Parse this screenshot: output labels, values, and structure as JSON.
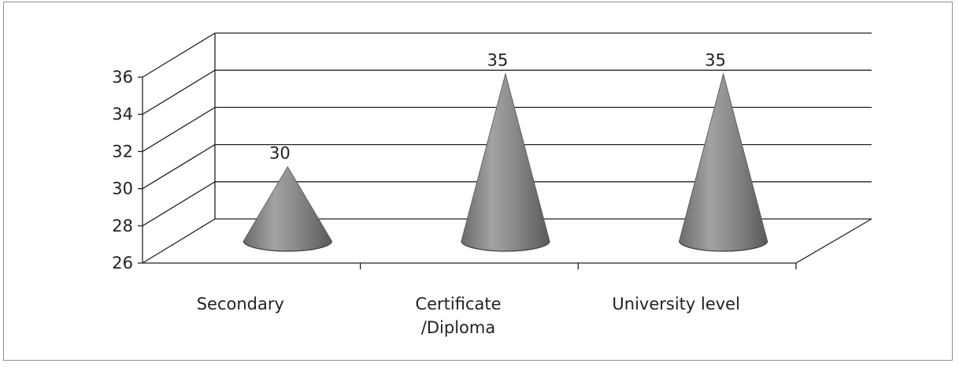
{
  "chart_data": {
    "type": "bar",
    "style": "3d-cone",
    "categories": [
      "Secondary",
      "Certificate\n/Diploma",
      "University level"
    ],
    "values": [
      30,
      35,
      35
    ],
    "data_labels": [
      "30",
      "35",
      "35"
    ],
    "ylim": [
      26,
      36
    ],
    "yticks": [
      "26",
      "28",
      "30",
      "32",
      "34",
      "36"
    ],
    "grid": true,
    "legend": "none",
    "colors": {
      "cone": "#7a7a7a",
      "grid": "#222222"
    }
  }
}
